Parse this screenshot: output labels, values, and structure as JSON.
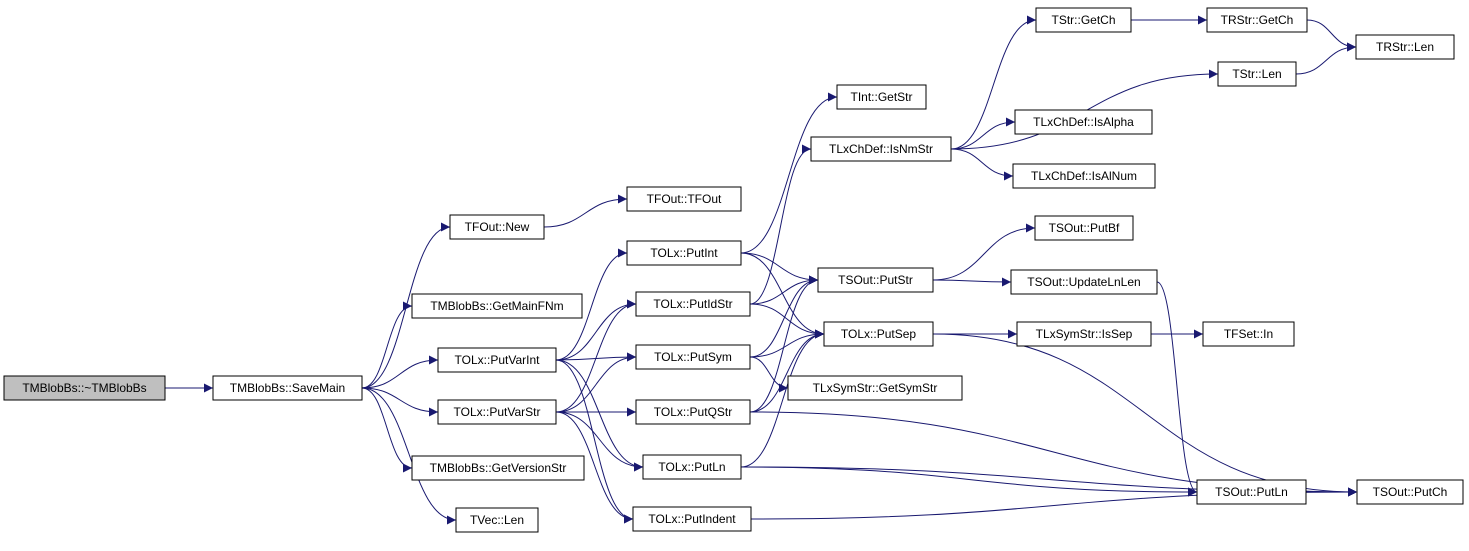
{
  "nodes": [
    {
      "label": "TMBlobBs::~TMBlobBs"
    },
    {
      "label": "TMBlobBs::SaveMain"
    },
    {
      "label": "TFOut::New"
    },
    {
      "label": "TMBlobBs::GetMainFNm"
    },
    {
      "label": "TOLx::PutVarInt"
    },
    {
      "label": "TOLx::PutVarStr"
    },
    {
      "label": "TMBlobBs::GetVersionStr"
    },
    {
      "label": "TVec::Len"
    },
    {
      "label": "TFOut::TFOut"
    },
    {
      "label": "TOLx::PutInt"
    },
    {
      "label": "TOLx::PutIdStr"
    },
    {
      "label": "TOLx::PutSym"
    },
    {
      "label": "TOLx::PutQStr"
    },
    {
      "label": "TOLx::PutLn"
    },
    {
      "label": "TOLx::PutIndent"
    },
    {
      "label": "TInt::GetStr"
    },
    {
      "label": "TLxChDef::IsNmStr"
    },
    {
      "label": "TSOut::PutStr"
    },
    {
      "label": "TOLx::PutSep"
    },
    {
      "label": "TLxSymStr::GetSymStr"
    },
    {
      "label": "TStr::GetCh"
    },
    {
      "label": "TStr::Len"
    },
    {
      "label": "TLxChDef::IsAlpha"
    },
    {
      "label": "TLxChDef::IsAlNum"
    },
    {
      "label": "TSOut::PutBf"
    },
    {
      "label": "TSOut::UpdateLnLen"
    },
    {
      "label": "TLxSymStr::IsSep"
    },
    {
      "label": "TRStr::GetCh"
    },
    {
      "label": "TRStr::Len"
    },
    {
      "label": "TFSet::In"
    },
    {
      "label": "TSOut::PutLn"
    },
    {
      "label": "TSOut::PutCh"
    }
  ]
}
